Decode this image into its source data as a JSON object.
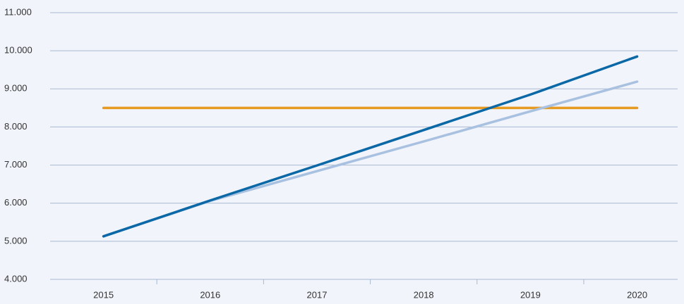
{
  "chart_data": {
    "type": "line",
    "categories": [
      "2015",
      "2016",
      "2017",
      "2018",
      "2019",
      "2020"
    ],
    "series": [
      {
        "color": "#e69a22",
        "values": [
          8500,
          8500,
          8500,
          8500,
          8500,
          8500
        ]
      },
      {
        "color": "#a9c1e0",
        "values": [
          5130,
          6060,
          6840,
          7620,
          8410,
          9190
        ]
      },
      {
        "color": "#0a68a6",
        "values": [
          5130,
          6070,
          6990,
          7920,
          8850,
          9850
        ]
      }
    ],
    "ylim": [
      4000,
      11000
    ],
    "yticks": [
      {
        "value": 4000,
        "label": "4.000"
      },
      {
        "value": 5000,
        "label": "5.000"
      },
      {
        "value": 6000,
        "label": "6.000"
      },
      {
        "value": 7000,
        "label": "7.000"
      },
      {
        "value": 8000,
        "label": "8.000"
      },
      {
        "value": 9000,
        "label": "9.000"
      },
      {
        "value": 10000,
        "label": "10.000"
      },
      {
        "value": 11000,
        "label": "11.000"
      }
    ],
    "grid": true
  }
}
